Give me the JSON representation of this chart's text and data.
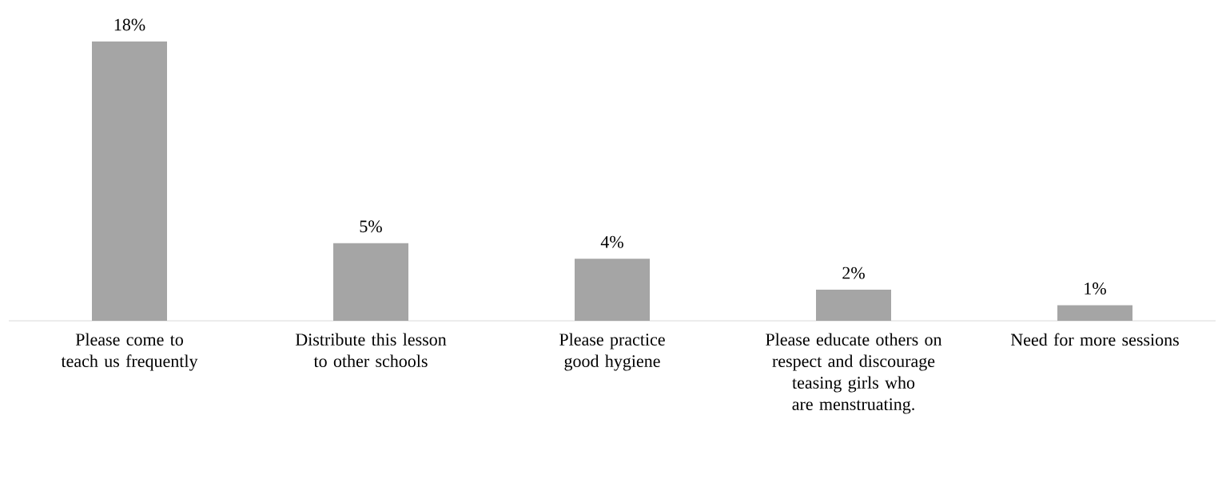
{
  "chart_data": {
    "type": "bar",
    "categories": [
      "Please come to teach us frequently",
      "Distribute this lesson to other schools",
      "Please practice good hygiene",
      "Please educate others on respect and discourage teasing girls who are menstruating.",
      "Need for more sessions"
    ],
    "values": [
      18,
      5,
      4,
      2,
      1
    ],
    "value_labels": [
      "18%",
      "5%",
      "4%",
      "2%",
      "1%"
    ],
    "color": "#a5a5a5",
    "ylim": [
      0,
      18
    ],
    "tick_labels": "x"
  }
}
